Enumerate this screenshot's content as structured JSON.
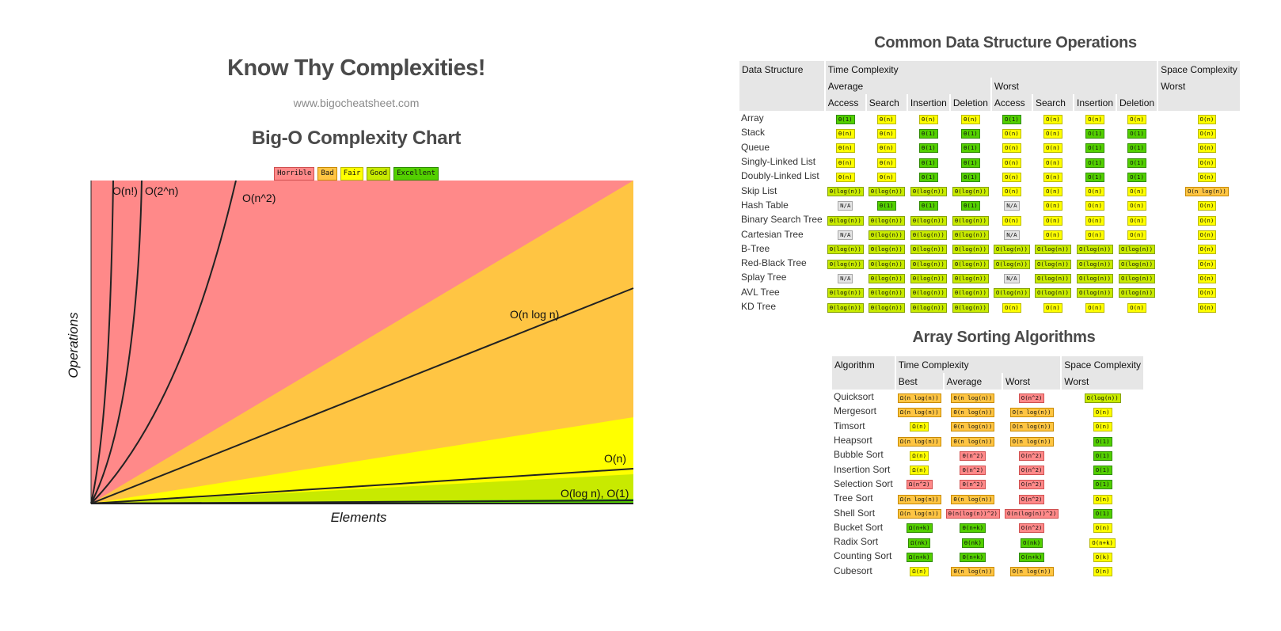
{
  "header": {
    "title": "Know Thy Complexities!",
    "url": "www.bigocheatsheet.com",
    "chart_title": "Big-O Complexity Chart"
  },
  "legend": [
    {
      "label": "Horrible",
      "cls": "h"
    },
    {
      "label": "Bad",
      "cls": "bd"
    },
    {
      "label": "Fair",
      "cls": "f"
    },
    {
      "label": "Good",
      "cls": "g"
    },
    {
      "label": "Excellent",
      "cls": "e"
    }
  ],
  "colors": {
    "horrible": "#ff8989",
    "bad": "#ffc543",
    "fair": "#ffff00",
    "good": "#c8ea00",
    "excellent": "#53d000",
    "na": "#e4e4e4"
  },
  "chart_data": {
    "type": "area",
    "xlabel": "Elements",
    "ylabel": "Operations",
    "regions": [
      "Horrible",
      "Bad",
      "Fair",
      "Good",
      "Excellent"
    ],
    "curves": [
      "O(n!)",
      "O(2^n)",
      "O(n^2)",
      "O(n log n)",
      "O(n)",
      "O(log n), O(1)"
    ],
    "grid": false
  },
  "ds_table": {
    "title": "Common Data Structure Operations",
    "h_col": "Data Structure",
    "h_time": "Time Complexity",
    "h_space": "Space Complexity",
    "h_avg": "Average",
    "h_worst": "Worst",
    "h_space_worst": "Worst",
    "ops": [
      "Access",
      "Search",
      "Insertion",
      "Deletion",
      "Access",
      "Search",
      "Insertion",
      "Deletion"
    ],
    "rows": [
      {
        "name": "Array",
        "cells": [
          [
            "Θ(1)",
            "e"
          ],
          [
            "Θ(n)",
            "f"
          ],
          [
            "Θ(n)",
            "f"
          ],
          [
            "Θ(n)",
            "f"
          ],
          [
            "O(1)",
            "e"
          ],
          [
            "O(n)",
            "f"
          ],
          [
            "O(n)",
            "f"
          ],
          [
            "O(n)",
            "f"
          ],
          [
            "O(n)",
            "f"
          ]
        ]
      },
      {
        "name": "Stack",
        "cells": [
          [
            "Θ(n)",
            "f"
          ],
          [
            "Θ(n)",
            "f"
          ],
          [
            "Θ(1)",
            "e"
          ],
          [
            "Θ(1)",
            "e"
          ],
          [
            "O(n)",
            "f"
          ],
          [
            "O(n)",
            "f"
          ],
          [
            "O(1)",
            "e"
          ],
          [
            "O(1)",
            "e"
          ],
          [
            "O(n)",
            "f"
          ]
        ]
      },
      {
        "name": "Queue",
        "cells": [
          [
            "Θ(n)",
            "f"
          ],
          [
            "Θ(n)",
            "f"
          ],
          [
            "Θ(1)",
            "e"
          ],
          [
            "Θ(1)",
            "e"
          ],
          [
            "O(n)",
            "f"
          ],
          [
            "O(n)",
            "f"
          ],
          [
            "O(1)",
            "e"
          ],
          [
            "O(1)",
            "e"
          ],
          [
            "O(n)",
            "f"
          ]
        ]
      },
      {
        "name": "Singly-Linked List",
        "cells": [
          [
            "Θ(n)",
            "f"
          ],
          [
            "Θ(n)",
            "f"
          ],
          [
            "Θ(1)",
            "e"
          ],
          [
            "Θ(1)",
            "e"
          ],
          [
            "O(n)",
            "f"
          ],
          [
            "O(n)",
            "f"
          ],
          [
            "O(1)",
            "e"
          ],
          [
            "O(1)",
            "e"
          ],
          [
            "O(n)",
            "f"
          ]
        ]
      },
      {
        "name": "Doubly-Linked List",
        "cells": [
          [
            "Θ(n)",
            "f"
          ],
          [
            "Θ(n)",
            "f"
          ],
          [
            "Θ(1)",
            "e"
          ],
          [
            "Θ(1)",
            "e"
          ],
          [
            "O(n)",
            "f"
          ],
          [
            "O(n)",
            "f"
          ],
          [
            "O(1)",
            "e"
          ],
          [
            "O(1)",
            "e"
          ],
          [
            "O(n)",
            "f"
          ]
        ]
      },
      {
        "name": "Skip List",
        "cells": [
          [
            "Θ(log(n))",
            "g"
          ],
          [
            "Θ(log(n))",
            "g"
          ],
          [
            "Θ(log(n))",
            "g"
          ],
          [
            "Θ(log(n))",
            "g"
          ],
          [
            "O(n)",
            "f"
          ],
          [
            "O(n)",
            "f"
          ],
          [
            "O(n)",
            "f"
          ],
          [
            "O(n)",
            "f"
          ],
          [
            "O(n log(n))",
            "bd"
          ]
        ]
      },
      {
        "name": "Hash Table",
        "cells": [
          [
            "N/A",
            "na"
          ],
          [
            "Θ(1)",
            "e"
          ],
          [
            "Θ(1)",
            "e"
          ],
          [
            "Θ(1)",
            "e"
          ],
          [
            "N/A",
            "na"
          ],
          [
            "O(n)",
            "f"
          ],
          [
            "O(n)",
            "f"
          ],
          [
            "O(n)",
            "f"
          ],
          [
            "O(n)",
            "f"
          ]
        ]
      },
      {
        "name": "Binary Search Tree",
        "cells": [
          [
            "Θ(log(n))",
            "g"
          ],
          [
            "Θ(log(n))",
            "g"
          ],
          [
            "Θ(log(n))",
            "g"
          ],
          [
            "Θ(log(n))",
            "g"
          ],
          [
            "O(n)",
            "f"
          ],
          [
            "O(n)",
            "f"
          ],
          [
            "O(n)",
            "f"
          ],
          [
            "O(n)",
            "f"
          ],
          [
            "O(n)",
            "f"
          ]
        ]
      },
      {
        "name": "Cartesian Tree",
        "cells": [
          [
            "N/A",
            "na"
          ],
          [
            "Θ(log(n))",
            "g"
          ],
          [
            "Θ(log(n))",
            "g"
          ],
          [
            "Θ(log(n))",
            "g"
          ],
          [
            "N/A",
            "na"
          ],
          [
            "O(n)",
            "f"
          ],
          [
            "O(n)",
            "f"
          ],
          [
            "O(n)",
            "f"
          ],
          [
            "O(n)",
            "f"
          ]
        ]
      },
      {
        "name": "B-Tree",
        "cells": [
          [
            "Θ(log(n))",
            "g"
          ],
          [
            "Θ(log(n))",
            "g"
          ],
          [
            "Θ(log(n))",
            "g"
          ],
          [
            "Θ(log(n))",
            "g"
          ],
          [
            "O(log(n))",
            "g"
          ],
          [
            "O(log(n))",
            "g"
          ],
          [
            "O(log(n))",
            "g"
          ],
          [
            "O(log(n))",
            "g"
          ],
          [
            "O(n)",
            "f"
          ]
        ]
      },
      {
        "name": "Red-Black Tree",
        "cells": [
          [
            "Θ(log(n))",
            "g"
          ],
          [
            "Θ(log(n))",
            "g"
          ],
          [
            "Θ(log(n))",
            "g"
          ],
          [
            "Θ(log(n))",
            "g"
          ],
          [
            "O(log(n))",
            "g"
          ],
          [
            "O(log(n))",
            "g"
          ],
          [
            "O(log(n))",
            "g"
          ],
          [
            "O(log(n))",
            "g"
          ],
          [
            "O(n)",
            "f"
          ]
        ]
      },
      {
        "name": "Splay Tree",
        "cells": [
          [
            "N/A",
            "na"
          ],
          [
            "Θ(log(n))",
            "g"
          ],
          [
            "Θ(log(n))",
            "g"
          ],
          [
            "Θ(log(n))",
            "g"
          ],
          [
            "N/A",
            "na"
          ],
          [
            "O(log(n))",
            "g"
          ],
          [
            "O(log(n))",
            "g"
          ],
          [
            "O(log(n))",
            "g"
          ],
          [
            "O(n)",
            "f"
          ]
        ]
      },
      {
        "name": "AVL Tree",
        "cells": [
          [
            "Θ(log(n))",
            "g"
          ],
          [
            "Θ(log(n))",
            "g"
          ],
          [
            "Θ(log(n))",
            "g"
          ],
          [
            "Θ(log(n))",
            "g"
          ],
          [
            "O(log(n))",
            "g"
          ],
          [
            "O(log(n))",
            "g"
          ],
          [
            "O(log(n))",
            "g"
          ],
          [
            "O(log(n))",
            "g"
          ],
          [
            "O(n)",
            "f"
          ]
        ]
      },
      {
        "name": "KD Tree",
        "cells": [
          [
            "Θ(log(n))",
            "g"
          ],
          [
            "Θ(log(n))",
            "g"
          ],
          [
            "Θ(log(n))",
            "g"
          ],
          [
            "Θ(log(n))",
            "g"
          ],
          [
            "O(n)",
            "f"
          ],
          [
            "O(n)",
            "f"
          ],
          [
            "O(n)",
            "f"
          ],
          [
            "O(n)",
            "f"
          ],
          [
            "O(n)",
            "f"
          ]
        ]
      }
    ]
  },
  "sort_table": {
    "title": "Array Sorting Algorithms",
    "h_col": "Algorithm",
    "h_time": "Time Complexity",
    "h_space": "Space Complexity",
    "sub": [
      "Best",
      "Average",
      "Worst"
    ],
    "h_space_worst": "Worst",
    "rows": [
      {
        "name": "Quicksort",
        "cells": [
          [
            "Ω(n log(n))",
            "bd"
          ],
          [
            "Θ(n log(n))",
            "bd"
          ],
          [
            "O(n^2)",
            "h"
          ],
          [
            "O(log(n))",
            "g"
          ]
        ]
      },
      {
        "name": "Mergesort",
        "cells": [
          [
            "Ω(n log(n))",
            "bd"
          ],
          [
            "Θ(n log(n))",
            "bd"
          ],
          [
            "O(n log(n))",
            "bd"
          ],
          [
            "O(n)",
            "f"
          ]
        ]
      },
      {
        "name": "Timsort",
        "cells": [
          [
            "Ω(n)",
            "f"
          ],
          [
            "Θ(n log(n))",
            "bd"
          ],
          [
            "O(n log(n))",
            "bd"
          ],
          [
            "O(n)",
            "f"
          ]
        ]
      },
      {
        "name": "Heapsort",
        "cells": [
          [
            "Ω(n log(n))",
            "bd"
          ],
          [
            "Θ(n log(n))",
            "bd"
          ],
          [
            "O(n log(n))",
            "bd"
          ],
          [
            "O(1)",
            "e"
          ]
        ]
      },
      {
        "name": "Bubble Sort",
        "cells": [
          [
            "Ω(n)",
            "f"
          ],
          [
            "Θ(n^2)",
            "h"
          ],
          [
            "O(n^2)",
            "h"
          ],
          [
            "O(1)",
            "e"
          ]
        ]
      },
      {
        "name": "Insertion Sort",
        "cells": [
          [
            "Ω(n)",
            "f"
          ],
          [
            "Θ(n^2)",
            "h"
          ],
          [
            "O(n^2)",
            "h"
          ],
          [
            "O(1)",
            "e"
          ]
        ]
      },
      {
        "name": "Selection Sort",
        "cells": [
          [
            "Ω(n^2)",
            "h"
          ],
          [
            "Θ(n^2)",
            "h"
          ],
          [
            "O(n^2)",
            "h"
          ],
          [
            "O(1)",
            "e"
          ]
        ]
      },
      {
        "name": "Tree Sort",
        "cells": [
          [
            "Ω(n log(n))",
            "bd"
          ],
          [
            "Θ(n log(n))",
            "bd"
          ],
          [
            "O(n^2)",
            "h"
          ],
          [
            "O(n)",
            "f"
          ]
        ]
      },
      {
        "name": "Shell Sort",
        "cells": [
          [
            "Ω(n log(n))",
            "bd"
          ],
          [
            "Θ(n(log(n))^2)",
            "h"
          ],
          [
            "O(n(log(n))^2)",
            "h"
          ],
          [
            "O(1)",
            "e"
          ]
        ]
      },
      {
        "name": "Bucket Sort",
        "cells": [
          [
            "Ω(n+k)",
            "e"
          ],
          [
            "Θ(n+k)",
            "e"
          ],
          [
            "O(n^2)",
            "h"
          ],
          [
            "O(n)",
            "f"
          ]
        ]
      },
      {
        "name": "Radix Sort",
        "cells": [
          [
            "Ω(nk)",
            "e"
          ],
          [
            "Θ(nk)",
            "e"
          ],
          [
            "O(nk)",
            "e"
          ],
          [
            "O(n+k)",
            "f"
          ]
        ]
      },
      {
        "name": "Counting Sort",
        "cells": [
          [
            "Ω(n+k)",
            "e"
          ],
          [
            "Θ(n+k)",
            "e"
          ],
          [
            "O(n+k)",
            "e"
          ],
          [
            "O(k)",
            "f"
          ]
        ]
      },
      {
        "name": "Cubesort",
        "cells": [
          [
            "Ω(n)",
            "f"
          ],
          [
            "Θ(n log(n))",
            "bd"
          ],
          [
            "O(n log(n))",
            "bd"
          ],
          [
            "O(n)",
            "f"
          ]
        ]
      }
    ]
  }
}
